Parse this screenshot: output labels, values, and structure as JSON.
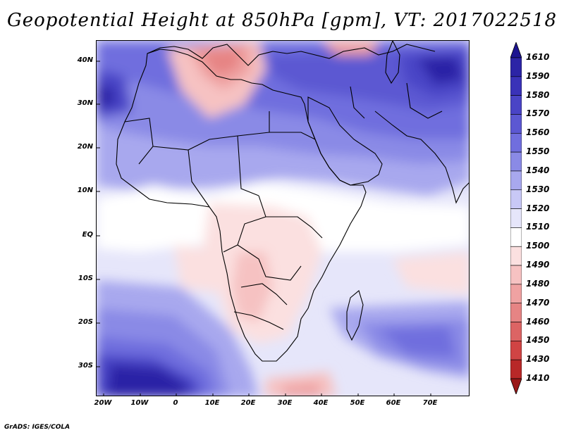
{
  "title": "Geopotential Height at 850hPa [gpm], VT: 2017022518",
  "footer": "GrADS: IGES/COLA",
  "map": {
    "region": "Africa and Middle East",
    "lat_range": [
      -37,
      45
    ],
    "lon_range": [
      -23,
      80
    ],
    "lat_ticks": [
      "40N",
      "30N",
      "20N",
      "10N",
      "EQ",
      "10S",
      "20S",
      "30S"
    ],
    "lon_ticks": [
      "20W",
      "10W",
      "0",
      "10E",
      "20E",
      "30E",
      "40E",
      "50E",
      "60E",
      "70E"
    ],
    "field": "Geopotential height, 850 hPa",
    "units": "gpm"
  },
  "colorbar": {
    "levels": [
      "1610",
      "1590",
      "1580",
      "1570",
      "1560",
      "1550",
      "1540",
      "1530",
      "1520",
      "1510",
      "1500",
      "1490",
      "1480",
      "1470",
      "1460",
      "1450",
      "1430",
      "1410"
    ],
    "colors": [
      "#1c1490",
      "#2c24a6",
      "#3a32b8",
      "#4a44c6",
      "#5c58d2",
      "#706ede",
      "#8a8ae6",
      "#a8a8ee",
      "#c8c8f6",
      "#e6e6fa",
      "#ffffff",
      "#fbe0e0",
      "#f6c2c2",
      "#efa2a2",
      "#e68484",
      "#dc6464",
      "#d04444",
      "#b82828",
      "#9a1818"
    ]
  }
}
